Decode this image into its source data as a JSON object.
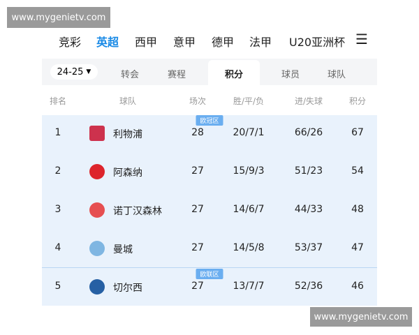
{
  "watermarks": [
    "www.mygenietv.com",
    "www.mygenietv.com"
  ],
  "tabs": [
    "竞彩",
    "英超",
    "西甲",
    "意甲",
    "德甲",
    "法甲",
    "U20亚洲杯"
  ],
  "season": "24-25",
  "subtabs": [
    "转会",
    "赛程",
    "积分",
    "球员",
    "球队"
  ],
  "table": {
    "headers": [
      "排名",
      "球队",
      "场次",
      "胜/平/负",
      "进/失球",
      "积分"
    ],
    "zones": [
      "欧冠区",
      "欧联区"
    ],
    "rows": [
      [
        1,
        "利物浦",
        28,
        "20/7/1",
        "66/26",
        67
      ],
      [
        2,
        "阿森纳",
        27,
        "15/9/3",
        "51/23",
        54
      ],
      [
        3,
        "诺丁汉森林",
        27,
        "14/6/7",
        "44/33",
        48
      ],
      [
        4,
        "曼城",
        27,
        "14/5/8",
        "53/37",
        47
      ],
      [
        5,
        "切尔西",
        27,
        "13/7/7",
        "52/36",
        46
      ]
    ]
  }
}
